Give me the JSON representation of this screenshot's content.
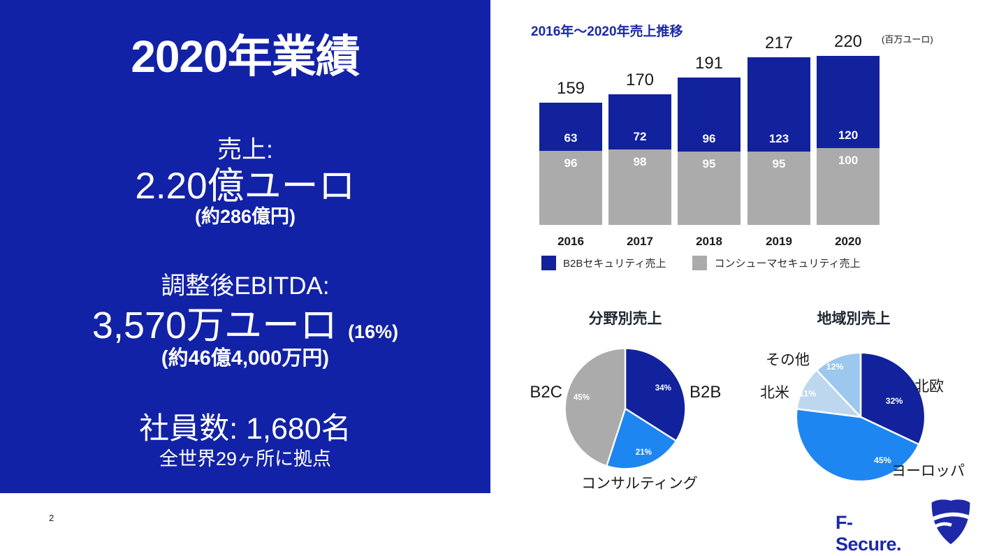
{
  "panel": {
    "title": "2020年業績",
    "revenue_label": "売上:",
    "revenue_value": "2.20億ユーロ",
    "revenue_note": "(約286億円)",
    "ebitda_label": "調整後EBITDA:",
    "ebitda_value": "3,570万ユーロ",
    "ebitda_pct": "(16%)",
    "ebitda_note": "(約46億4,000万円)",
    "employees": "社員数: 1,680名",
    "locations": "全世界29ヶ所に拠点",
    "bg_color": "#1222A6",
    "text_color": "#FFFFFF"
  },
  "chart_data": [
    {
      "type": "bar",
      "stacked": true,
      "title": "2016年～2020年売上推移",
      "unit": "(百万ユーロ)",
      "categories": [
        "2016",
        "2017",
        "2018",
        "2019",
        "2020"
      ],
      "series": [
        {
          "name": "B2Bセキュリティ売上",
          "color": "#12219C",
          "values": [
            63,
            72,
            96,
            123,
            120
          ]
        },
        {
          "name": "コンシューマセキュリティ売上",
          "color": "#ABABAB",
          "values": [
            96,
            98,
            95,
            95,
            100
          ]
        }
      ],
      "totals": [
        159,
        170,
        191,
        217,
        220
      ],
      "ylim": [
        0,
        240
      ],
      "grid": false,
      "legend_position": "bottom"
    },
    {
      "type": "pie",
      "title": "分野別売上",
      "slices": [
        {
          "label": "B2B",
          "pct": 34,
          "color": "#12219C",
          "label_angle": 61,
          "label_r": 0.72
        },
        {
          "label": "コンサルティング",
          "pct": 21,
          "color": "#1E86F0",
          "label_angle": 157,
          "label_r": 0.78
        },
        {
          "label": "B2C",
          "pct": 45,
          "color": "#ABABAB",
          "label_angle": 285,
          "label_r": 0.75
        }
      ]
    },
    {
      "type": "pie",
      "title": "地域別売上",
      "slices": [
        {
          "label": "北欧",
          "pct": 32,
          "color": "#12219C",
          "label_angle": 64,
          "label_r": 0.58
        },
        {
          "label": "ヨーロッパ",
          "pct": 45,
          "color": "#1E86F0",
          "label_angle": 153,
          "label_r": 0.75
        },
        {
          "label": "北米",
          "pct": 11,
          "color": "#BDD7EE",
          "label_angle": 294,
          "label_r": 0.9
        },
        {
          "label": "その他",
          "pct": 12,
          "color": "#9CC7EE",
          "label_angle": 333,
          "label_r": 0.88
        }
      ]
    }
  ],
  "footer": {
    "page": "2",
    "logo_text": "F-Secure.",
    "logo_color": "#1E28A8"
  }
}
